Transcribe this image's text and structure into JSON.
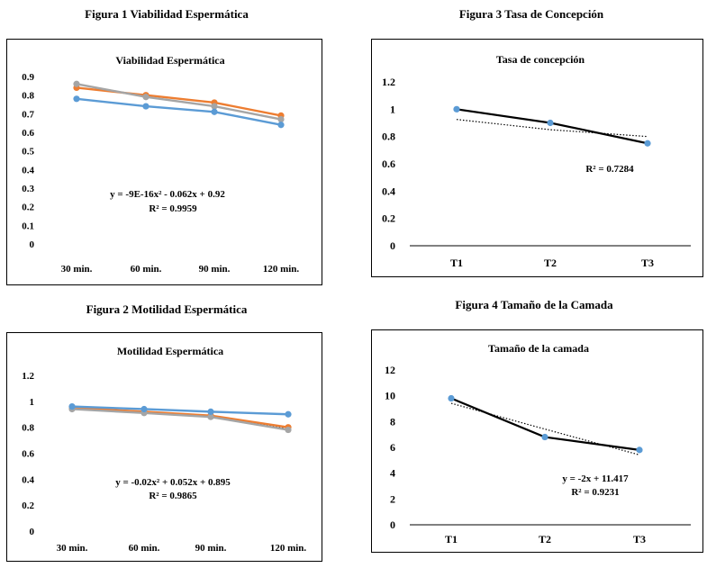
{
  "captions": {
    "fig1": "Figura 1 Viabilidad Espermática",
    "fig2": "Figura 2 Motilidad Espermática",
    "fig3": "Figura 3 Tasa de Concepción",
    "fig4": "Figura 4 Tamaño de la Camada"
  },
  "chart_data": [
    {
      "id": "fig1",
      "type": "line",
      "title": "Viabilidad  Espermática",
      "categories": [
        "30 min.",
        "60 min.",
        "90 min.",
        "120  min."
      ],
      "ylim": [
        0,
        0.9
      ],
      "yticks": [
        "0",
        "0.1",
        "0.2",
        "0.3",
        "0.4",
        "0.5",
        "0.6",
        "0.7",
        "0.8",
        "0.9"
      ],
      "series": [
        {
          "values": [
            0.84,
            0.8,
            0.76,
            0.69
          ],
          "color": "#ED7D31"
        },
        {
          "values": [
            0.86,
            0.79,
            0.74,
            0.67
          ],
          "color": "#A5A5A5"
        },
        {
          "values": [
            0.78,
            0.74,
            0.71,
            0.64
          ],
          "color": "#5B9BD5"
        }
      ],
      "trendline": {
        "values": [
          0.78,
          0.74,
          0.71,
          0.64
        ]
      },
      "equation": "y = -9E-16x² - 0.062x + 0.92",
      "r2": "R² = 0.9959",
      "grid": false
    },
    {
      "id": "fig2",
      "type": "line",
      "title": "Motilidad  Espermática",
      "categories": [
        "30 min.",
        "60 min.",
        "90 min.",
        "120  min."
      ],
      "ylim": [
        0,
        1.2
      ],
      "yticks": [
        "0",
        "0.2",
        "0.4",
        "0.6",
        "0.8",
        "1",
        "1.2"
      ],
      "series": [
        {
          "values": [
            0.95,
            0.92,
            0.89,
            0.8
          ],
          "color": "#ED7D31"
        },
        {
          "values": [
            0.94,
            0.91,
            0.88,
            0.78
          ],
          "color": "#A5A5A5"
        },
        {
          "values": [
            0.96,
            0.94,
            0.92,
            0.9
          ],
          "color": "#5B9BD5"
        }
      ],
      "trendline": {
        "values": [
          0.95,
          0.92,
          0.89,
          0.79
        ]
      },
      "equation": "y = -0.02x² + 0.052x + 0.895",
      "r2": "R² = 0.9865",
      "grid": false
    },
    {
      "id": "fig3",
      "type": "line",
      "title": "Tasa de concepción",
      "categories": [
        "T1",
        "T2",
        "T3"
      ],
      "ylim": [
        0,
        1.2
      ],
      "yticks": [
        "0",
        "0.2",
        "0.4",
        "0.6",
        "0.8",
        "1",
        "1.2"
      ],
      "series": [
        {
          "values": [
            1.0,
            0.9,
            0.75
          ],
          "line_color": "#000000",
          "marker_color": "#5B9BD5"
        }
      ],
      "trendline": {
        "values": [
          0.925,
          0.85,
          0.8
        ]
      },
      "equation": "",
      "r2": "R² = 0.7284",
      "grid": false
    },
    {
      "id": "fig4",
      "type": "line",
      "title": "Tamaño de la camada",
      "categories": [
        "T1",
        "T2",
        "T3"
      ],
      "ylim": [
        0,
        12
      ],
      "yticks": [
        "0",
        "2",
        "4",
        "6",
        "8",
        "10",
        "12"
      ],
      "series": [
        {
          "values": [
            9.8,
            6.8,
            5.8
          ],
          "line_color": "#000000",
          "marker_color": "#5B9BD5"
        }
      ],
      "trendline": {
        "values": [
          9.417,
          7.417,
          5.417
        ]
      },
      "equation": "y = -2x + 11.417",
      "r2": "R² = 0.9231",
      "grid": false
    }
  ]
}
